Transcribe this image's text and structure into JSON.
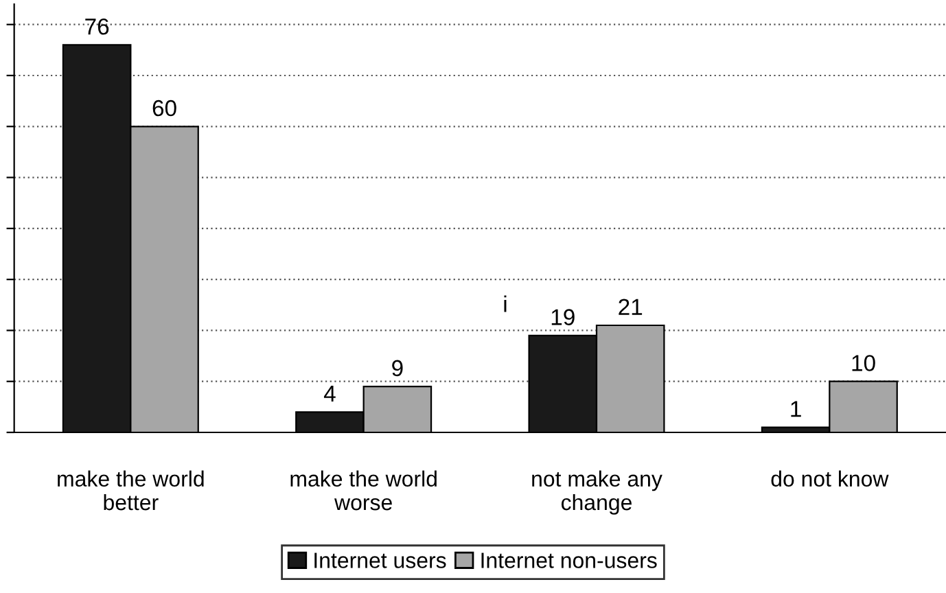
{
  "chart_data": {
    "type": "bar",
    "categories": [
      "make the world\nbetter",
      "make the world\nworse",
      "not make any\nchange",
      "do not know"
    ],
    "series": [
      {
        "name": "Internet users",
        "color": "#1a1a1a",
        "values": [
          76,
          4,
          19,
          1
        ]
      },
      {
        "name": "Internet non-users",
        "color": "#a6a6a6",
        "values": [
          60,
          9,
          21,
          10
        ]
      }
    ],
    "ylim": [
      0,
      84
    ],
    "yticks": [
      {
        "value": 0,
        "label": null
      },
      {
        "value": 10,
        "label": null
      },
      {
        "value": 20,
        "label": null
      },
      {
        "value": 30,
        "label": null
      },
      {
        "value": 40,
        "label": null
      },
      {
        "value": 50,
        "label": null
      },
      {
        "value": 60,
        "label": null
      },
      {
        "value": 70,
        "label": null
      },
      {
        "value": 80,
        "label": null
      }
    ],
    "grid": "y",
    "legend": "bottom",
    "data_labels": true,
    "annotations": [
      "i"
    ]
  }
}
